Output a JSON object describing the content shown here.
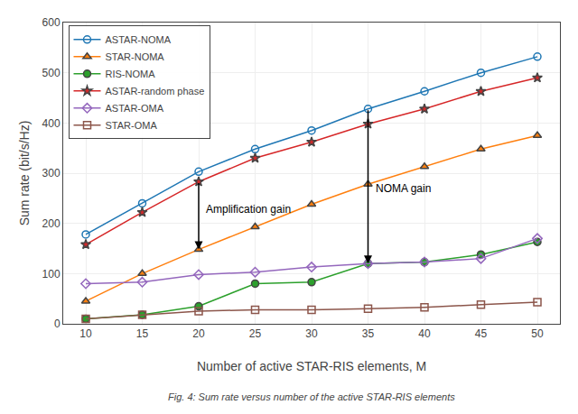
{
  "chart_data": {
    "type": "line",
    "x_label": "Number of active STAR-RIS elements, M",
    "y_label": "Sum rate (bit/s/Hz)",
    "caption": "Fig. 4: Sum rate versus number of the active STAR-RIS elements",
    "x": [
      10,
      15,
      20,
      25,
      30,
      35,
      40,
      45,
      50
    ],
    "series": [
      {
        "name": "ASTAR-NOMA",
        "marker": "circle-open",
        "values": [
          178,
          240,
          303,
          348,
          385,
          428,
          463,
          500,
          532
        ]
      },
      {
        "name": "STAR-NOMA",
        "marker": "triangle-up",
        "values": [
          45,
          100,
          148,
          193,
          238,
          278,
          313,
          348,
          375
        ]
      },
      {
        "name": "RIS-NOMA",
        "marker": "circle",
        "values": [
          10,
          18,
          35,
          80,
          83,
          120,
          123,
          138,
          163
        ]
      },
      {
        "name": "ASTAR-random phase",
        "marker": "star",
        "values": [
          158,
          222,
          283,
          330,
          362,
          398,
          428,
          463,
          490
        ]
      },
      {
        "name": "ASTAR-OMA",
        "marker": "diamond-open",
        "values": [
          80,
          83,
          98,
          103,
          113,
          120,
          123,
          130,
          170
        ]
      },
      {
        "name": "STAR-OMA",
        "marker": "square-open",
        "values": [
          10,
          18,
          25,
          28,
          28,
          30,
          33,
          38,
          43
        ]
      }
    ],
    "annotations": [
      {
        "text": "Amplification gain",
        "x": 20,
        "y_start": 283,
        "y_end": 148,
        "text_x": 20.5,
        "text_y": 228
      },
      {
        "text": "NOMA gain",
        "x": 35,
        "y_start": 428,
        "y_end": 120,
        "text_x": 35.5,
        "text_y": 270
      }
    ],
    "xlim": [
      8,
      52
    ],
    "ylim": [
      0,
      600
    ],
    "xticks": [
      10,
      15,
      20,
      25,
      30,
      35,
      40,
      45,
      50
    ],
    "yticks": [
      0,
      100,
      200,
      300,
      400,
      500,
      600
    ],
    "grid": true,
    "legend": "upper left"
  }
}
